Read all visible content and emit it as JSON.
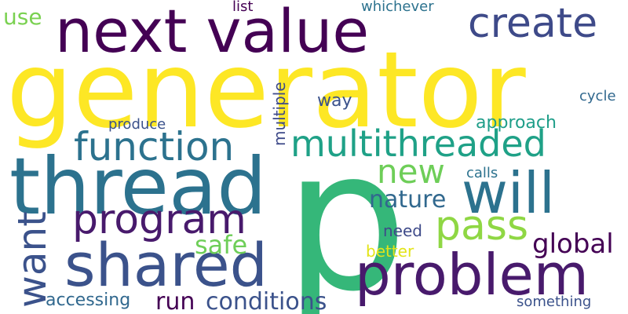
{
  "cloud": {
    "words": [
      {
        "text": "generator",
        "color": "#fde725"
      },
      {
        "text": "p",
        "color": "#35b779"
      },
      {
        "text": "thread",
        "color": "#2c728e"
      },
      {
        "text": "next value",
        "color": "#440154"
      },
      {
        "text": "problem",
        "color": "#481a6c"
      },
      {
        "text": "shared",
        "color": "#3b528b"
      },
      {
        "text": "multithreaded",
        "color": "#1fa187"
      },
      {
        "text": "will",
        "color": "#2c728e"
      },
      {
        "text": "function",
        "color": "#2c728e"
      },
      {
        "text": "create",
        "color": "#3e4a89"
      },
      {
        "text": "program",
        "color": "#481a6c"
      },
      {
        "text": "pass",
        "color": "#8fd744"
      },
      {
        "text": "want",
        "color": "#3b528b"
      },
      {
        "text": "new",
        "color": "#6ece58"
      },
      {
        "text": "conditions",
        "color": "#3b528b"
      },
      {
        "text": "nature",
        "color": "#31688e"
      },
      {
        "text": "safe",
        "color": "#6ece58"
      },
      {
        "text": "global",
        "color": "#440154"
      },
      {
        "text": "run",
        "color": "#440154"
      },
      {
        "text": "accessing",
        "color": "#31688e"
      },
      {
        "text": "approach",
        "color": "#1f9e89"
      },
      {
        "text": "multiple",
        "color": "#3e4a89"
      },
      {
        "text": "use",
        "color": "#7ad151"
      },
      {
        "text": "way",
        "color": "#3b528b"
      },
      {
        "text": "cycle",
        "color": "#31688e"
      },
      {
        "text": "list",
        "color": "#440154"
      },
      {
        "text": "whichever",
        "color": "#2c728e"
      },
      {
        "text": "produce",
        "color": "#3b528b"
      },
      {
        "text": "calls",
        "color": "#2c728e"
      },
      {
        "text": "need",
        "color": "#3e4a89"
      },
      {
        "text": "better",
        "color": "#e3e418"
      },
      {
        "text": "something",
        "color": "#3b528b"
      }
    ]
  }
}
